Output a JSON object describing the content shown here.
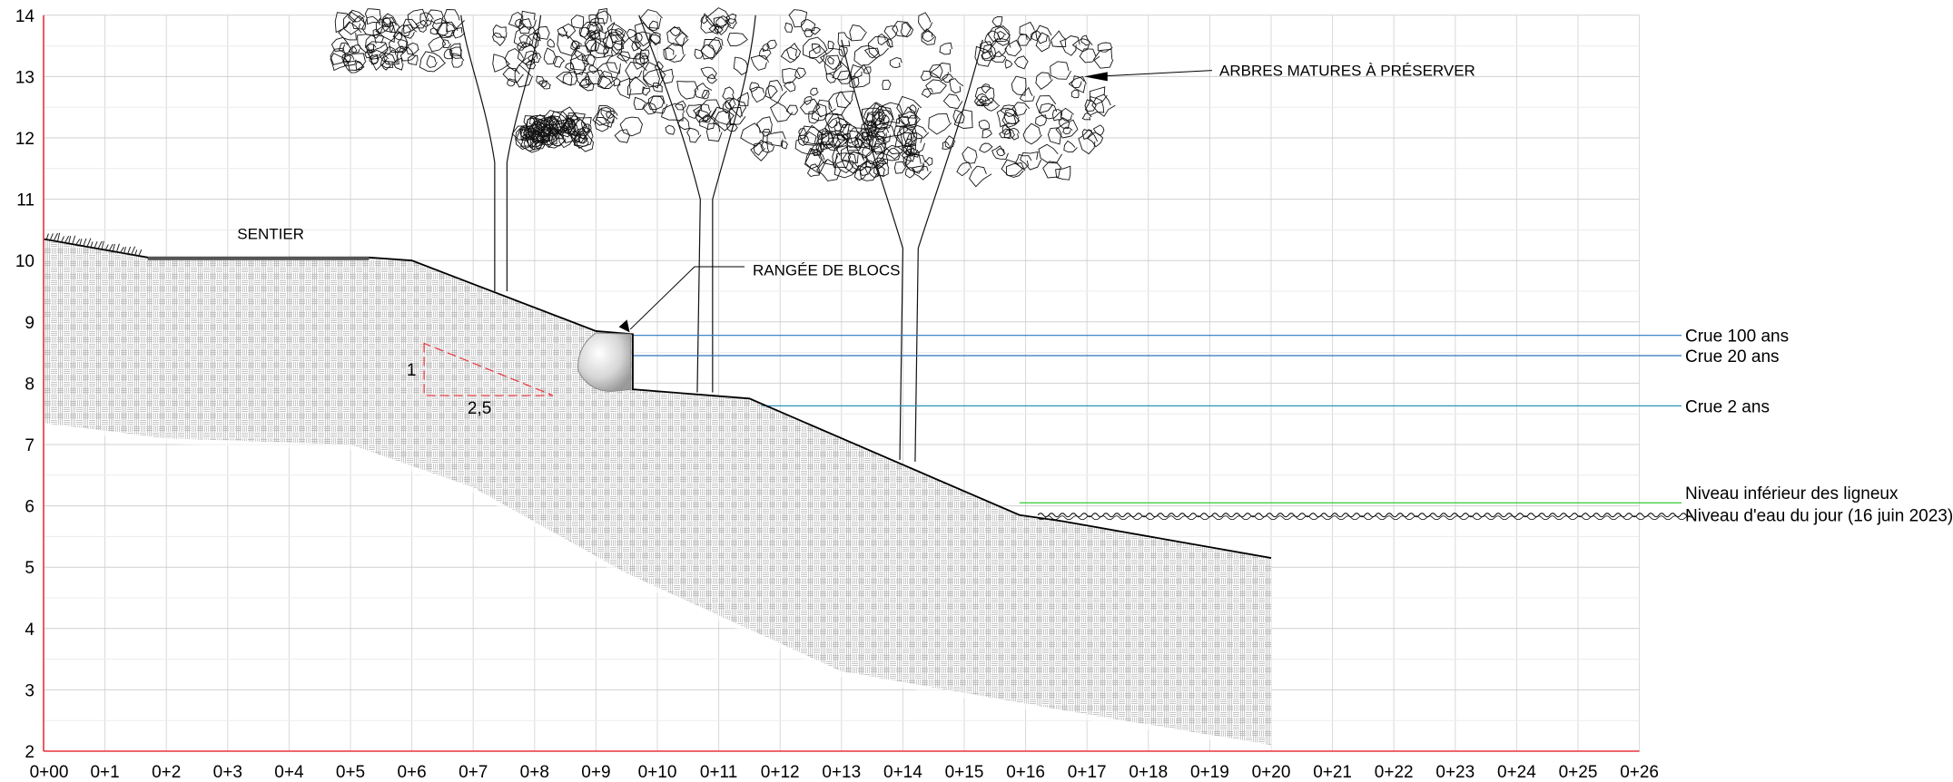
{
  "diagram": {
    "type": "cross-section",
    "grid": true,
    "x_ticks": [
      "0+00",
      "0+1",
      "0+2",
      "0+3",
      "0+4",
      "0+5",
      "0+6",
      "0+7",
      "0+8",
      "0+9",
      "0+10",
      "0+11",
      "0+12",
      "0+13",
      "0+14",
      "0+15",
      "0+16",
      "0+17",
      "0+18",
      "0+19",
      "0+20",
      "0+21",
      "0+22",
      "0+23",
      "0+24",
      "0+25",
      "0+26"
    ],
    "y_ticks": [
      "2",
      "3",
      "4",
      "5",
      "6",
      "7",
      "8",
      "9",
      "10",
      "11",
      "12",
      "13",
      "14"
    ],
    "x_range": [
      0,
      26
    ],
    "y_range": [
      2,
      14
    ],
    "ground_profile": [
      {
        "x": 0,
        "y": 10.35
      },
      {
        "x": 1.7,
        "y": 10.05
      },
      {
        "x": 5.3,
        "y": 10.05
      },
      {
        "x": 6.0,
        "y": 10.0
      },
      {
        "x": 9.0,
        "y": 8.85
      },
      {
        "x": 9.6,
        "y": 8.8
      },
      {
        "x": 9.6,
        "y": 7.9
      },
      {
        "x": 11.5,
        "y": 7.75
      },
      {
        "x": 15.9,
        "y": 5.85
      },
      {
        "x": 16.6,
        "y": 5.75
      },
      {
        "x": 20.0,
        "y": 5.15
      }
    ],
    "annotations": {
      "path": "SENTIER",
      "blocks": "RANGÉE DE BLOCS",
      "trees": "ARBRES MATURES À PRÉSERVER",
      "slope_rise": "1",
      "slope_run": "2,5"
    },
    "levels": [
      {
        "label": "Crue 100 ans",
        "y": 8.78,
        "color": "#2f74c0",
        "x_start": 9.6
      },
      {
        "label": "Crue 20 ans",
        "y": 8.45,
        "color": "#2f74c0",
        "x_start": 9.6
      },
      {
        "label": "Crue 2 ans",
        "y": 7.63,
        "color": "#2a93b8",
        "x_start": 11.7
      },
      {
        "label": "Niveau inférieur des ligneux",
        "y": 6.05,
        "color": "#33cc33",
        "x_start": 15.9
      },
      {
        "label": "Niveau d'eau du jour (16 juin 2023)",
        "y": 5.85,
        "color": "#000000",
        "x_start": 16.2
      }
    ],
    "colors": {
      "axis": "#e8343a",
      "grid": "#d8d8d8",
      "slope_triangle": "#e8343a",
      "ground_line": "#000000"
    }
  }
}
